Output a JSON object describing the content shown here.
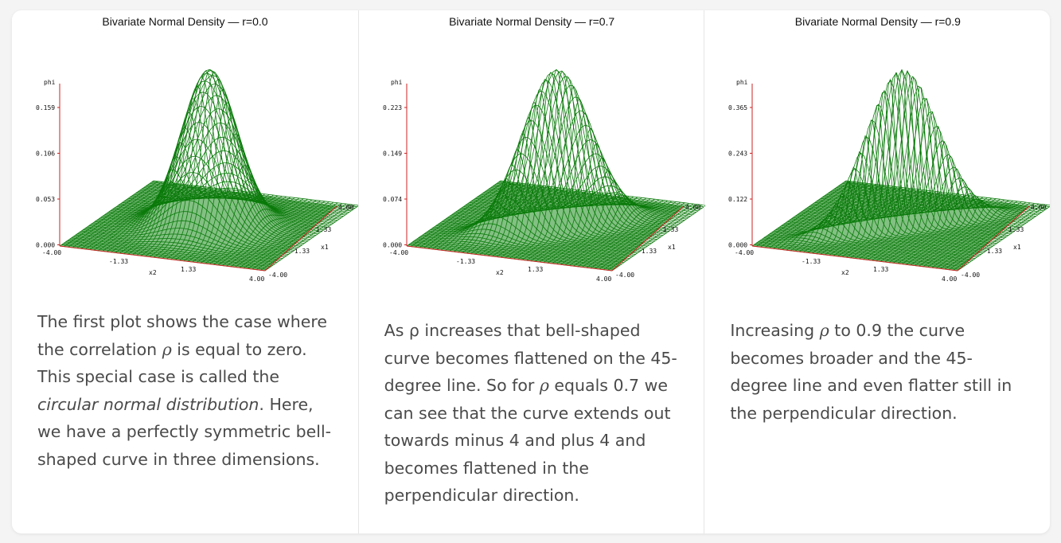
{
  "panels": [
    {
      "title": "Bivariate Normal Density — r=0.0",
      "ticks_z": [
        "0.159",
        "0.106",
        "0.053",
        "0.000"
      ],
      "z_label": "phi",
      "x2_ticks": [
        "-4.00",
        "-1.33",
        "1.33",
        "4.00"
      ],
      "x1_ticks": [
        "4.00",
        "1.33",
        "-1.33",
        "-4.00"
      ],
      "x1_label": "x1",
      "x2_label": "x2",
      "caption": {
        "p1": "The first plot shows the case where the correlation ",
        "rho": "ρ",
        "p2": " is equal to zero. This special case is called the ",
        "em": "circular normal distribution",
        "p3": ". Here, we have a perfectly symmetric bell-shaped curve in three dimensions."
      }
    },
    {
      "title": "Bivariate Normal Density — r=0.7",
      "ticks_z": [
        "0.223",
        "0.149",
        "0.074",
        "0.000"
      ],
      "z_label": "phi",
      "x2_ticks": [
        "-4.00",
        "-1.33",
        "1.33",
        "4.00"
      ],
      "x1_ticks": [
        "4.00",
        "1.33",
        "-1.33",
        "-4.00"
      ],
      "x1_label": "x1",
      "x2_label": "x2",
      "caption": {
        "p1": "As ρ increases that bell-shaped curve becomes flattened on the 45-degree line. So for ",
        "rho": "ρ",
        "p2": " equals 0.7 we can see that the curve extends out towards minus 4 and plus 4 and becomes flattened in the perpendicular direction."
      }
    },
    {
      "title": "Bivariate Normal Density — r=0.9",
      "ticks_z": [
        "0.365",
        "0.243",
        "0.122",
        "0.000"
      ],
      "z_label": "phi",
      "x2_ticks": [
        "-4.00",
        "-1.33",
        "1.33",
        "4.00"
      ],
      "x1_ticks": [
        "4.00",
        "1.33",
        "-1.33",
        "-4.00"
      ],
      "x1_label": "x1",
      "x2_label": "x2",
      "caption": {
        "p1": "Increasing ",
        "rho": "ρ",
        "p2": " to 0.9 the curve becomes broader and the 45-degree line and even flatter still in the perpendicular direction."
      }
    }
  ],
  "colors": {
    "mesh": "#0a7a0a",
    "axis": "#cc2222",
    "text": "#4a4a4a"
  },
  "correlations": [
    0.0,
    0.7,
    0.9
  ]
}
